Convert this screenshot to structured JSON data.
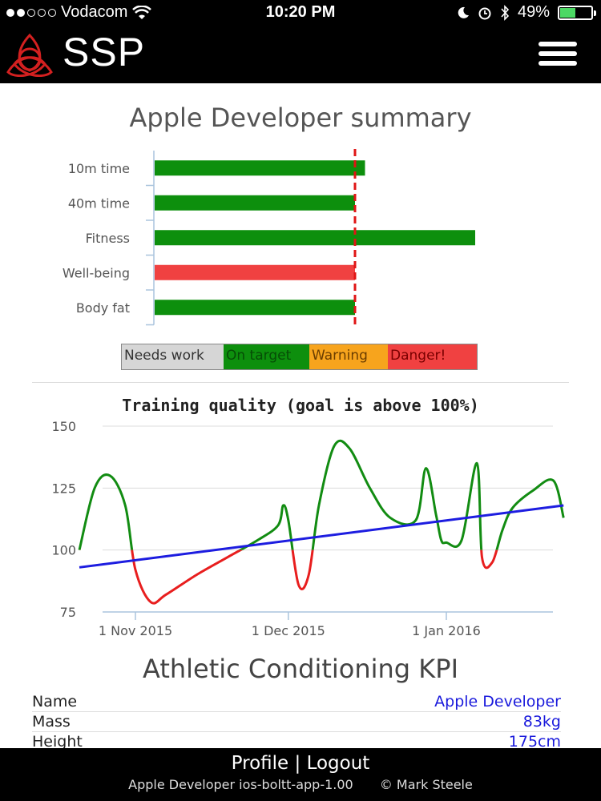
{
  "status_bar": {
    "carrier": "Vodacom",
    "time": "10:20 PM",
    "battery": "49%",
    "battery_level": 0.49
  },
  "app": {
    "name": "SSP"
  },
  "summary": {
    "title": "Apple Developer summary",
    "legend": [
      "Needs work",
      "On target",
      "Warning",
      "Danger!"
    ]
  },
  "chart_data": [
    {
      "type": "bar",
      "orientation": "horizontal",
      "categories": [
        "10m time",
        "40m time",
        "Fitness",
        "Well-being",
        "Body fat"
      ],
      "values": [
        105,
        100,
        160,
        100,
        100
      ],
      "statuses": [
        "On target",
        "On target",
        "On target",
        "Danger!",
        "On target"
      ],
      "target": 100,
      "xlim": [
        0,
        170
      ]
    },
    {
      "type": "line",
      "title": "Training quality (goal is above 100%)",
      "x_ticks": [
        "1 Nov 2015",
        "1 Dec 2015",
        "1 Jan 2016"
      ],
      "y_ticks": [
        75,
        100,
        125,
        150
      ],
      "ylim": [
        75,
        150
      ],
      "grid": true,
      "series": [
        {
          "role": "quality",
          "x": [
            "2015-10-21",
            "2015-10-24",
            "2015-10-27",
            "2015-10-30",
            "2015-11-01",
            "2015-11-04",
            "2015-11-07",
            "2015-11-13",
            "2015-11-19",
            "2015-11-25",
            "2015-11-29",
            "2015-11-30",
            "2015-12-01",
            "2015-12-03",
            "2015-12-05",
            "2015-12-07",
            "2015-12-10",
            "2015-12-13",
            "2015-12-17",
            "2015-12-21",
            "2015-12-26",
            "2015-12-28",
            "2015-12-30",
            "2015-12-31",
            "2016-01-01",
            "2016-01-04",
            "2016-01-07",
            "2016-01-08",
            "2016-01-10",
            "2016-01-12",
            "2016-01-14",
            "2016-01-18",
            "2016-01-22",
            "2016-01-24"
          ],
          "y": [
            100,
            125,
            130,
            118,
            92,
            79,
            82,
            90,
            97,
            104,
            110,
            118,
            112,
            86,
            90,
            118,
            142,
            141,
            125,
            113,
            112,
            133,
            114,
            104,
            103,
            104,
            135,
            97,
            95,
            108,
            117,
            124,
            128,
            113
          ],
          "colors": {
            "above_goal": "#128c12",
            "below_goal": "#e81e1e"
          }
        },
        {
          "role": "trend",
          "x": [
            "2015-10-21",
            "2016-01-24"
          ],
          "y": [
            93,
            118
          ],
          "color": "#1d1de0"
        }
      ]
    }
  ],
  "kpi": {
    "title": "Athletic Conditioning KPI",
    "rows": [
      {
        "key": "Name",
        "value": "Apple Developer"
      },
      {
        "key": "Mass",
        "value": "83kg"
      },
      {
        "key": "Height",
        "value": "175cm"
      }
    ]
  },
  "footer": {
    "profile": "Profile",
    "separator": "|",
    "logout": "Logout",
    "meta_left": "Apple Developer ios-boltt-app-1.00",
    "meta_right": "© Mark Steele"
  },
  "colors": {
    "on_target": "#0d8f0d",
    "danger": "#f04141",
    "warning": "#f7a41d",
    "needs_work": "#d6d6d6",
    "link": "#1a1adc"
  }
}
